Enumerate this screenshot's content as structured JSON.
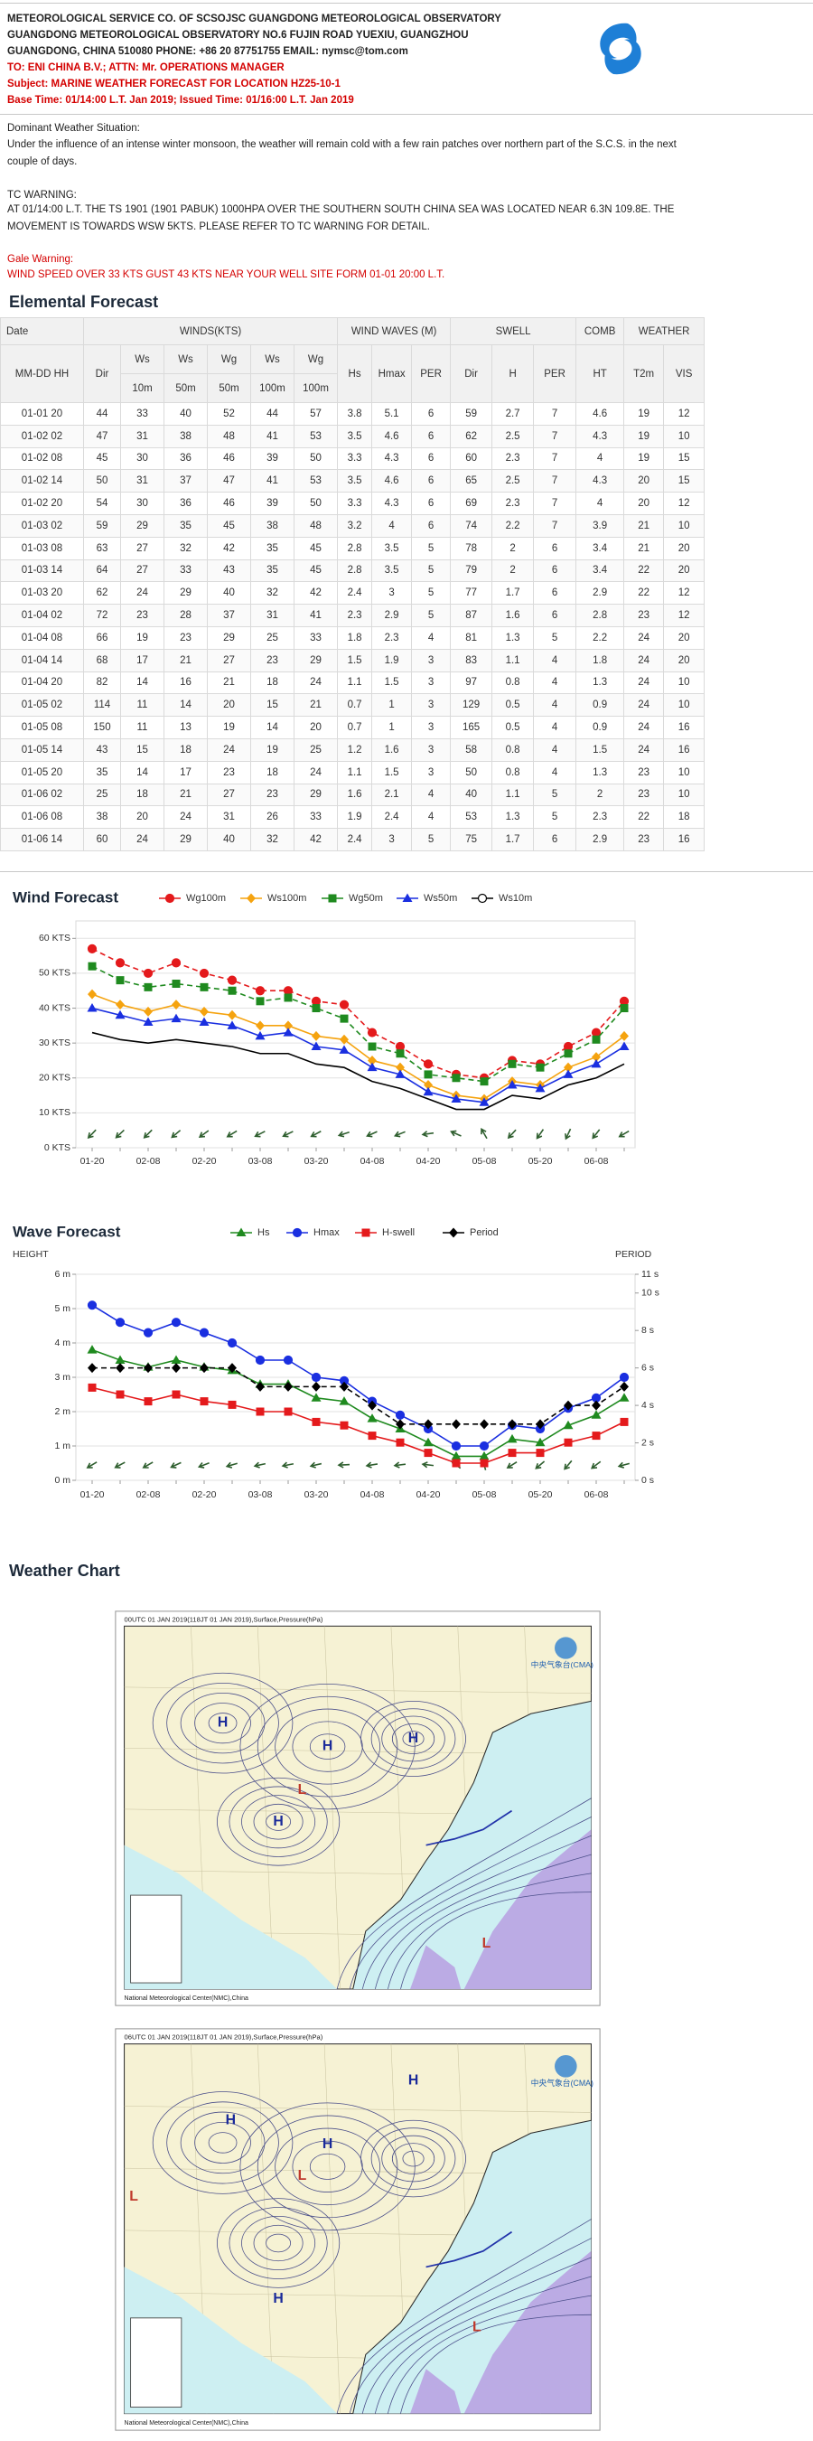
{
  "header": {
    "lines": [
      "METEOROLOGICAL SERVICE CO. OF SCSOJSC GUANGDONG METEOROLOGICAL OBSERVATORY",
      "GUANGDONG METEOROLOGICAL OBSERVATORY NO.6 FUJIN ROAD YUEXIU, GUANGZHOU",
      "GUANGDONG, CHINA 510080 PHONE: +86 20 87751755 EMAIL: nymsc@tom.com"
    ],
    "to": "TO: ENI CHINA B.V.; ATTN: Mr. OPERATIONS MANAGER",
    "subject": "Subject: MARINE WEATHER FORECAST FOR LOCATION HZ25-10-1",
    "base_time": "Base Time: 01/14:00 L.T. Jan 2019; Issued Time: 01/16:00 L.T. Jan 2019"
  },
  "situation": {
    "label": "Dominant Weather Situation:",
    "text": "Under the influence of an intense winter monsoon, the weather will remain cold with a few rain patches over northern part of the S.C.S. in the next couple of days."
  },
  "tc_warning": {
    "label": "TC WARNING:",
    "text": "AT 01/14:00 L.T. THE TS 1901 (1901 PABUK) 1000HPA OVER THE SOUTHERN SOUTH CHINA SEA WAS LOCATED NEAR 6.3N 109.8E. THE MOVEMENT IS TOWARDS WSW 5KTS. PLEASE REFER TO TC WARNING FOR DETAIL."
  },
  "gale_warning": {
    "label": "Gale Warning:",
    "text": "WIND SPEED OVER 33 KTS GUST 43 KTS NEAR YOUR WELL SITE FORM 01-01 20:00 L.T."
  },
  "table": {
    "title": "Elemental Forecast",
    "groups": [
      "Date",
      "WINDS(KTS)",
      "WIND WAVES (M)",
      "SWELL",
      "COMB",
      "WEATHER"
    ],
    "subheaders": [
      "MM-DD HH",
      "Dir",
      "Ws",
      "Ws",
      "Wg",
      "Ws",
      "Wg",
      "Hs",
      "Hmax",
      "PER",
      "Dir",
      "H",
      "PER",
      "HT",
      "T2m",
      "VIS"
    ],
    "heights": [
      "10m",
      "50m",
      "50m",
      "100m",
      "100m"
    ],
    "rows": [
      [
        "01-01 20",
        44,
        33,
        40,
        52,
        44,
        57,
        3.8,
        5.1,
        6,
        59,
        2.7,
        7,
        4.6,
        19,
        12
      ],
      [
        "01-02 02",
        47,
        31,
        38,
        48,
        41,
        53,
        3.5,
        4.6,
        6,
        62,
        2.5,
        7,
        4.3,
        19,
        10
      ],
      [
        "01-02 08",
        45,
        30,
        36,
        46,
        39,
        50,
        3.3,
        4.3,
        6,
        60,
        2.3,
        7,
        4,
        19,
        15
      ],
      [
        "01-02 14",
        50,
        31,
        37,
        47,
        41,
        53,
        3.5,
        4.6,
        6,
        65,
        2.5,
        7,
        4.3,
        20,
        15
      ],
      [
        "01-02 20",
        54,
        30,
        36,
        46,
        39,
        50,
        3.3,
        4.3,
        6,
        69,
        2.3,
        7,
        4,
        20,
        12
      ],
      [
        "01-03 02",
        59,
        29,
        35,
        45,
        38,
        48,
        3.2,
        4,
        6,
        74,
        2.2,
        7,
        3.9,
        21,
        10
      ],
      [
        "01-03 08",
        63,
        27,
        32,
        42,
        35,
        45,
        2.8,
        3.5,
        5,
        78,
        2,
        6,
        3.4,
        21,
        20
      ],
      [
        "01-03 14",
        64,
        27,
        33,
        43,
        35,
        45,
        2.8,
        3.5,
        5,
        79,
        2,
        6,
        3.4,
        22,
        20
      ],
      [
        "01-03 20",
        62,
        24,
        29,
        40,
        32,
        42,
        2.4,
        3,
        5,
        77,
        1.7,
        6,
        2.9,
        22,
        12
      ],
      [
        "01-04 02",
        72,
        23,
        28,
        37,
        31,
        41,
        2.3,
        2.9,
        5,
        87,
        1.6,
        6,
        2.8,
        23,
        12
      ],
      [
        "01-04 08",
        66,
        19,
        23,
        29,
        25,
        33,
        1.8,
        2.3,
        4,
        81,
        1.3,
        5,
        2.2,
        24,
        20
      ],
      [
        "01-04 14",
        68,
        17,
        21,
        27,
        23,
        29,
        1.5,
        1.9,
        3,
        83,
        1.1,
        4,
        1.8,
        24,
        20
      ],
      [
        "01-04 20",
        82,
        14,
        16,
        21,
        18,
        24,
        1.1,
        1.5,
        3,
        97,
        0.8,
        4,
        1.3,
        24,
        10
      ],
      [
        "01-05 02",
        114,
        11,
        14,
        20,
        15,
        21,
        0.7,
        1,
        3,
        129,
        0.5,
        4,
        0.9,
        24,
        10
      ],
      [
        "01-05 08",
        150,
        11,
        13,
        19,
        14,
        20,
        0.7,
        1,
        3,
        165,
        0.5,
        4,
        0.9,
        24,
        16
      ],
      [
        "01-05 14",
        43,
        15,
        18,
        24,
        19,
        25,
        1.2,
        1.6,
        3,
        58,
        0.8,
        4,
        1.5,
        24,
        16
      ],
      [
        "01-05 20",
        35,
        14,
        17,
        23,
        18,
        24,
        1.1,
        1.5,
        3,
        50,
        0.8,
        4,
        1.3,
        23,
        10
      ],
      [
        "01-06 02",
        25,
        18,
        21,
        27,
        23,
        29,
        1.6,
        2.1,
        4,
        40,
        1.1,
        5,
        2,
        23,
        10
      ],
      [
        "01-06 08",
        38,
        20,
        24,
        31,
        26,
        33,
        1.9,
        2.4,
        4,
        53,
        1.3,
        5,
        2.3,
        22,
        18
      ],
      [
        "01-06 14",
        60,
        24,
        29,
        40,
        32,
        42,
        2.4,
        3,
        5,
        75,
        1.7,
        6,
        2.9,
        23,
        16
      ]
    ]
  },
  "chart_data": [
    {
      "type": "line",
      "title": "Wind Forecast",
      "categories": [
        "01-20",
        null,
        "02-08",
        null,
        "02-20",
        null,
        "03-08",
        null,
        "03-20",
        null,
        "04-08",
        null,
        "04-20",
        null,
        "05-08",
        null,
        "05-20",
        null,
        "06-08",
        null
      ],
      "series": [
        {
          "name": "Wg100m",
          "color": "#e41a1c",
          "marker": "circle",
          "dashed": true,
          "values": [
            57,
            53,
            50,
            53,
            50,
            48,
            45,
            45,
            42,
            41,
            33,
            29,
            24,
            21,
            20,
            25,
            24,
            29,
            33,
            42
          ]
        },
        {
          "name": "Ws100m",
          "color": "#f5a30f",
          "marker": "diamond",
          "dashed": false,
          "values": [
            44,
            41,
            39,
            41,
            39,
            38,
            35,
            35,
            32,
            31,
            25,
            23,
            18,
            15,
            14,
            19,
            18,
            23,
            26,
            32
          ]
        },
        {
          "name": "Wg50m",
          "color": "#1f8a1f",
          "marker": "square",
          "dashed": true,
          "values": [
            52,
            48,
            46,
            47,
            46,
            45,
            42,
            43,
            40,
            37,
            29,
            27,
            21,
            20,
            19,
            24,
            23,
            27,
            31,
            40
          ]
        },
        {
          "name": "Ws50m",
          "color": "#1a2fe0",
          "marker": "triangle",
          "dashed": false,
          "values": [
            40,
            38,
            36,
            37,
            36,
            35,
            32,
            33,
            29,
            28,
            23,
            21,
            16,
            14,
            13,
            18,
            17,
            21,
            24,
            29
          ]
        },
        {
          "name": "Ws10m",
          "color": "#000000",
          "marker": "circle-open",
          "dashed": false,
          "values": [
            33,
            31,
            30,
            31,
            30,
            29,
            27,
            27,
            24,
            23,
            19,
            17,
            14,
            11,
            11,
            15,
            14,
            18,
            20,
            24
          ]
        }
      ],
      "ylim": [
        0,
        65
      ],
      "yticks": [
        {
          "value": 0,
          "label": "0 KTS"
        },
        {
          "value": 10,
          "label": "10 KTS"
        },
        {
          "value": 20,
          "label": "20 KTS"
        },
        {
          "value": 30,
          "label": "30 KTS"
        },
        {
          "value": 40,
          "label": "40 KTS"
        },
        {
          "value": 50,
          "label": "50 KTS"
        },
        {
          "value": 60,
          "label": "60 KTS"
        }
      ],
      "grid": true
    },
    {
      "type": "line",
      "title": "Wave Forecast",
      "ylabel": "HEIGHT",
      "y2label": "PERIOD",
      "categories": [
        "01-20",
        null,
        "02-08",
        null,
        "02-20",
        null,
        "03-08",
        null,
        "03-20",
        null,
        "04-08",
        null,
        "04-20",
        null,
        "05-08",
        null,
        "05-20",
        null,
        "06-08",
        null
      ],
      "series": [
        {
          "name": "Hs",
          "color": "#1f8a1f",
          "marker": "triangle",
          "dashed": false,
          "values": [
            3.8,
            3.5,
            3.3,
            3.5,
            3.3,
            3.2,
            2.8,
            2.8,
            2.4,
            2.3,
            1.8,
            1.5,
            1.1,
            0.7,
            0.7,
            1.2,
            1.1,
            1.6,
            1.9,
            2.4
          ]
        },
        {
          "name": "Hmax",
          "color": "#1a2fe0",
          "marker": "circle",
          "dashed": false,
          "values": [
            5.1,
            4.6,
            4.3,
            4.6,
            4.3,
            4,
            3.5,
            3.5,
            3,
            2.9,
            2.3,
            1.9,
            1.5,
            1,
            1,
            1.6,
            1.5,
            2.1,
            2.4,
            3
          ]
        },
        {
          "name": "H-swell",
          "color": "#e41a1c",
          "marker": "square",
          "dashed": false,
          "values": [
            2.7,
            2.5,
            2.3,
            2.5,
            2.3,
            2.2,
            2,
            2,
            1.7,
            1.6,
            1.3,
            1.1,
            0.8,
            0.5,
            0.5,
            0.8,
            0.8,
            1.1,
            1.3,
            1.7
          ]
        },
        {
          "name": "Period",
          "color": "#000000",
          "marker": "diamond",
          "dashed": true,
          "axis": "y2",
          "values": [
            6,
            6,
            6,
            6,
            6,
            6,
            5,
            5,
            5,
            5,
            4,
            3,
            3,
            3,
            3,
            3,
            3,
            4,
            4,
            5
          ]
        }
      ],
      "ylim": [
        0,
        6
      ],
      "yticks": [
        {
          "value": 0,
          "label": "0 m"
        },
        {
          "value": 1,
          "label": "1 m"
        },
        {
          "value": 2,
          "label": "2 m"
        },
        {
          "value": 3,
          "label": "3 m"
        },
        {
          "value": 4,
          "label": "4 m"
        },
        {
          "value": 5,
          "label": "5 m"
        },
        {
          "value": 6,
          "label": "6 m"
        }
      ],
      "y2lim": [
        0,
        11
      ],
      "y2ticks": [
        {
          "value": 0,
          "label": "0 s"
        },
        {
          "value": 2,
          "label": "2 s"
        },
        {
          "value": 4,
          "label": "4 s"
        },
        {
          "value": 6,
          "label": "6 s"
        },
        {
          "value": 8,
          "label": "8 s"
        },
        {
          "value": 10,
          "label": "10 s"
        },
        {
          "value": 11,
          "label": "11 s"
        }
      ],
      "grid": true
    }
  ],
  "weather_chart": {
    "title": "Weather Chart",
    "maps": [
      {
        "title": "00UTC 01 JAN 2019(118JT 01 JAN 2019),Surface,Pressure(hPa)",
        "agency": "中央气象台(CMA)",
        "credit": "National Meteorological Center(NMC),China",
        "centers": [
          "H",
          "H",
          "H",
          "H",
          "L",
          "L"
        ]
      },
      {
        "title": "06UTC 01 JAN 2019(118JT 01 JAN 2019),Surface,Pressure(hPa)",
        "agency": "中央气象台(CMA)",
        "credit": "National Meteorological Center(NMC),China",
        "centers": [
          "H",
          "H",
          "H",
          "H",
          "L",
          "L",
          "L"
        ]
      }
    ]
  }
}
